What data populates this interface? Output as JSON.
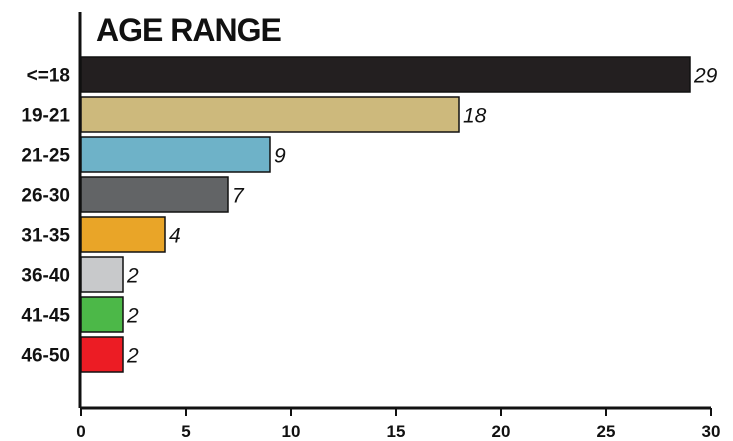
{
  "chart_data": {
    "type": "bar",
    "orientation": "horizontal",
    "title": "AGE RANGE",
    "categories": [
      "<=18",
      "19-21",
      "21-25",
      "26-30",
      "31-35",
      "36-40",
      "41-45",
      "46-50"
    ],
    "values": [
      29,
      18,
      9,
      7,
      4,
      2,
      2,
      2
    ],
    "colors": [
      "#231f20",
      "#cdb97c",
      "#6eb2c8",
      "#626466",
      "#e9a528",
      "#c8c9cb",
      "#4cb848",
      "#ec1c24"
    ],
    "xlim": [
      0,
      30
    ],
    "xticks": [
      0,
      5,
      10,
      15,
      20,
      25,
      30
    ],
    "data_labels": true,
    "grid": false
  }
}
